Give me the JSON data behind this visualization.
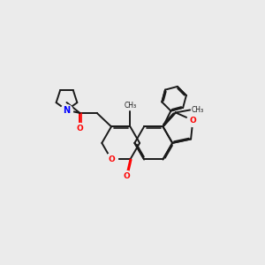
{
  "bg_color": "#ebebeb",
  "bond_color": "#1a1a1a",
  "oxygen_color": "#ff0000",
  "nitrogen_color": "#0000ff",
  "lw": 1.4,
  "dbo": 0.045,
  "xlim": [
    0,
    10
  ],
  "ylim": [
    0,
    10
  ]
}
